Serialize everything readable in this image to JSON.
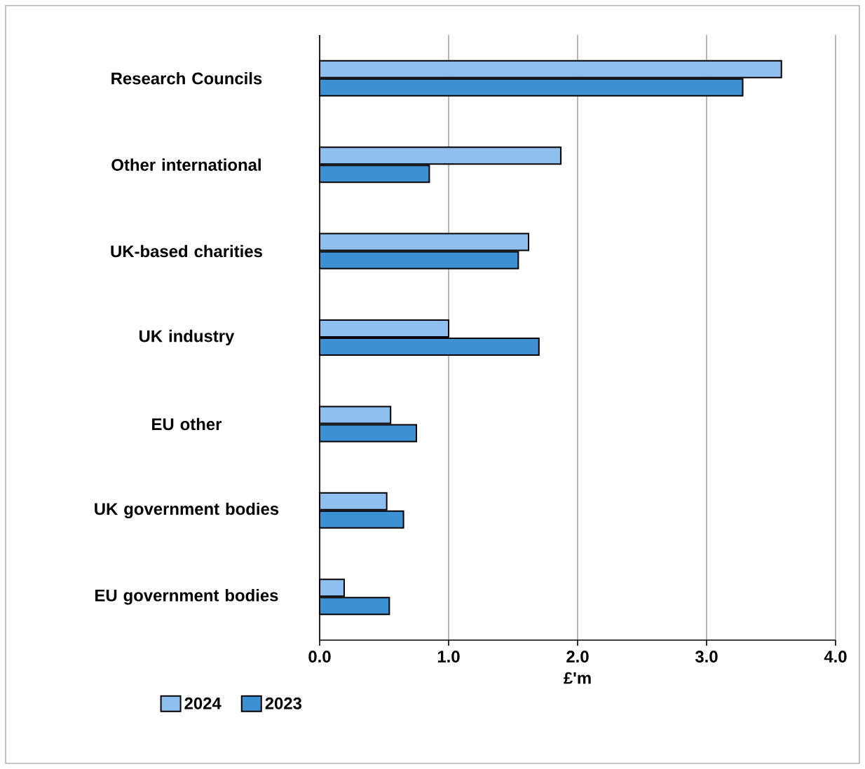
{
  "chart_data": {
    "type": "bar",
    "orientation": "horizontal",
    "xlabel": "£'m",
    "categories": [
      "Research Councils",
      "Other international",
      "UK-based charities",
      "UK industry",
      "EU other",
      "UK government bodies",
      "EU government bodies"
    ],
    "series": [
      {
        "name": "2024",
        "color": "#8fbfef",
        "values": [
          3.58,
          1.87,
          1.62,
          1.0,
          0.55,
          0.52,
          0.19
        ]
      },
      {
        "name": "2023",
        "color": "#3d91d3",
        "values": [
          3.28,
          0.85,
          1.54,
          1.7,
          0.75,
          0.65,
          0.54
        ]
      }
    ],
    "xlim": [
      0,
      4
    ],
    "xticks": [
      {
        "value": 0,
        "label": "0.0"
      },
      {
        "value": 1,
        "label": "1.0"
      },
      {
        "value": 2,
        "label": "2.0"
      },
      {
        "value": 3,
        "label": "3.0"
      },
      {
        "value": 4,
        "label": "4.0"
      }
    ],
    "grid": "x",
    "legend": "bottom left"
  }
}
